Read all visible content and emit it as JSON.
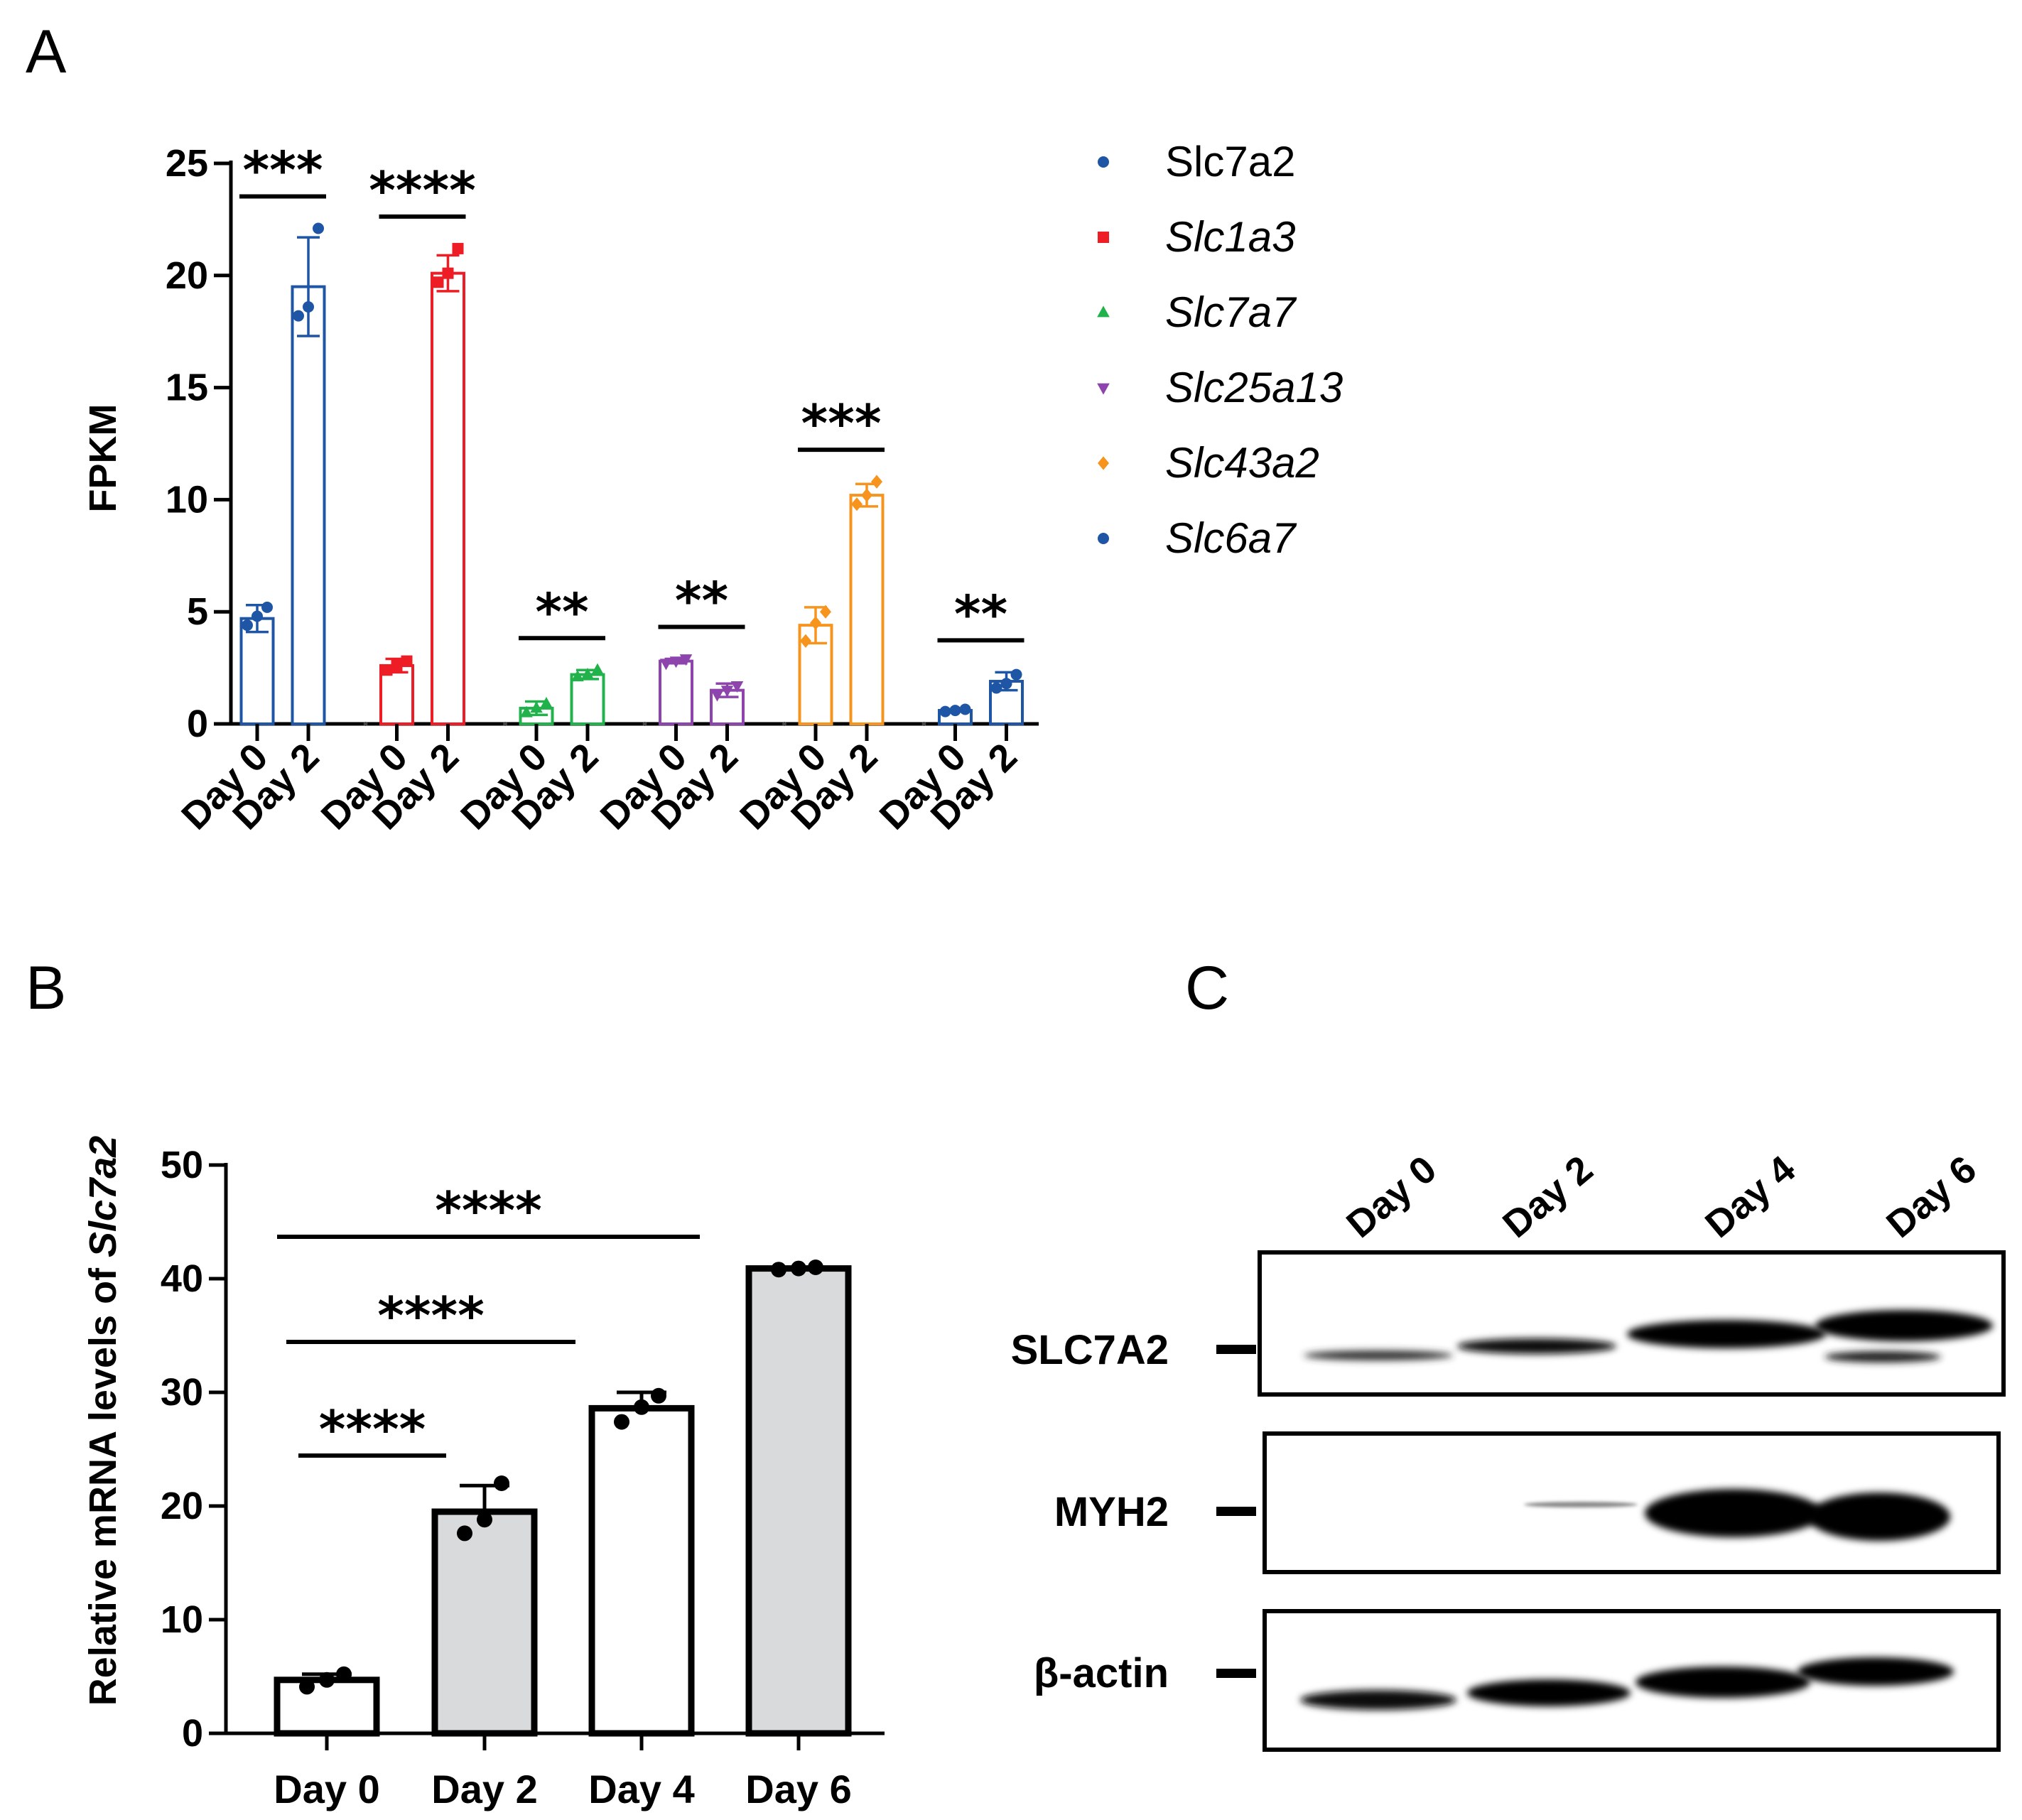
{
  "panels": {
    "A": {
      "letter": "A"
    },
    "B": {
      "letter": "B"
    },
    "C": {
      "letter": "C"
    }
  },
  "chart_data": [
    {
      "panel": "A",
      "type": "bar",
      "ylabel": "FPKM",
      "ylim": [
        0,
        25
      ],
      "yticks": [
        0,
        5,
        10,
        15,
        20,
        25
      ],
      "categories": [
        "Day 0",
        "Day 2"
      ],
      "groups": [
        {
          "name": "Slc7a2",
          "italic": false,
          "color": "#1f55a5",
          "marker": "circle",
          "values": [
            4.7,
            19.5
          ],
          "errors": [
            0.6,
            2.2
          ],
          "points": [
            [
              4.4,
              4.8,
              5.2
            ],
            [
              18.2,
              18.6,
              22.1
            ]
          ],
          "sig": "***"
        },
        {
          "name": "Slc1a3",
          "italic": true,
          "color": "#ee1c25",
          "marker": "square",
          "values": [
            2.6,
            20.1
          ],
          "errors": [
            0.3,
            0.8
          ],
          "points": [
            [
              2.4,
              2.6,
              2.8
            ],
            [
              19.7,
              20.1,
              21.2
            ]
          ],
          "sig": "****"
        },
        {
          "name": "Slc7a7",
          "italic": true,
          "color": "#21b24b",
          "marker": "triangle-up",
          "values": [
            0.7,
            2.2
          ],
          "errors": [
            0.3,
            0.2
          ],
          "points": [
            [
              0.5,
              0.7,
              0.9
            ],
            [
              2.1,
              2.2,
              2.4
            ]
          ],
          "sig": "**"
        },
        {
          "name": "Slc25a13",
          "italic": true,
          "color": "#8e44ad",
          "marker": "triangle-down",
          "values": [
            2.8,
            1.5
          ],
          "errors": [
            0.1,
            0.3
          ],
          "points": [
            [
              2.7,
              2.8,
              2.9
            ],
            [
              1.3,
              1.5,
              1.7
            ]
          ],
          "sig": "**"
        },
        {
          "name": "Slc43a2",
          "italic": true,
          "color": "#f7941d",
          "marker": "diamond",
          "values": [
            4.4,
            10.2
          ],
          "errors": [
            0.8,
            0.5
          ],
          "points": [
            [
              3.7,
              4.5,
              5.0
            ],
            [
              9.8,
              10.2,
              10.8
            ]
          ],
          "sig": "***"
        },
        {
          "name": "Slc6a7",
          "italic": true,
          "color": "#1f55a5",
          "marker": "circle",
          "values": [
            0.6,
            1.9
          ],
          "errors": [
            0.05,
            0.4
          ],
          "points": [
            [
              0.55,
              0.6,
              0.65
            ],
            [
              1.6,
              1.8,
              2.2
            ]
          ],
          "sig": "**"
        }
      ]
    },
    {
      "panel": "B",
      "type": "bar",
      "ylabel_prefix": "Relative mRNA levels of ",
      "ylabel_gene": "Slc7a2",
      "ylim": [
        0,
        50
      ],
      "yticks": [
        0,
        10,
        20,
        30,
        40,
        50
      ],
      "categories": [
        "Day 0",
        "Day 2",
        "Day 4",
        "Day 6"
      ],
      "values": [
        4.7,
        19.5,
        28.6,
        40.9
      ],
      "errors": [
        0.5,
        2.3,
        1.4,
        0.1
      ],
      "fills": [
        "#ffffff",
        "#d9dadb",
        "#ffffff",
        "#d9dadb"
      ],
      "points": [
        [
          4.1,
          4.7,
          5.2
        ],
        [
          17.6,
          18.8,
          22.0
        ],
        [
          27.4,
          28.7,
          29.7
        ],
        [
          40.8,
          40.9,
          41.0
        ]
      ],
      "comparisons": [
        {
          "from": 0,
          "to": 1,
          "label": "****"
        },
        {
          "from": 0,
          "to": 2,
          "label": "****"
        },
        {
          "from": 0,
          "to": 3,
          "label": "****"
        }
      ]
    }
  ],
  "blot": {
    "lanes": [
      "Day 0",
      "Day 2",
      "Day 4",
      "Day 6"
    ],
    "rows": [
      {
        "label": "SLC7A2"
      },
      {
        "label": "MYH2"
      },
      {
        "label": "β-actin"
      }
    ]
  }
}
